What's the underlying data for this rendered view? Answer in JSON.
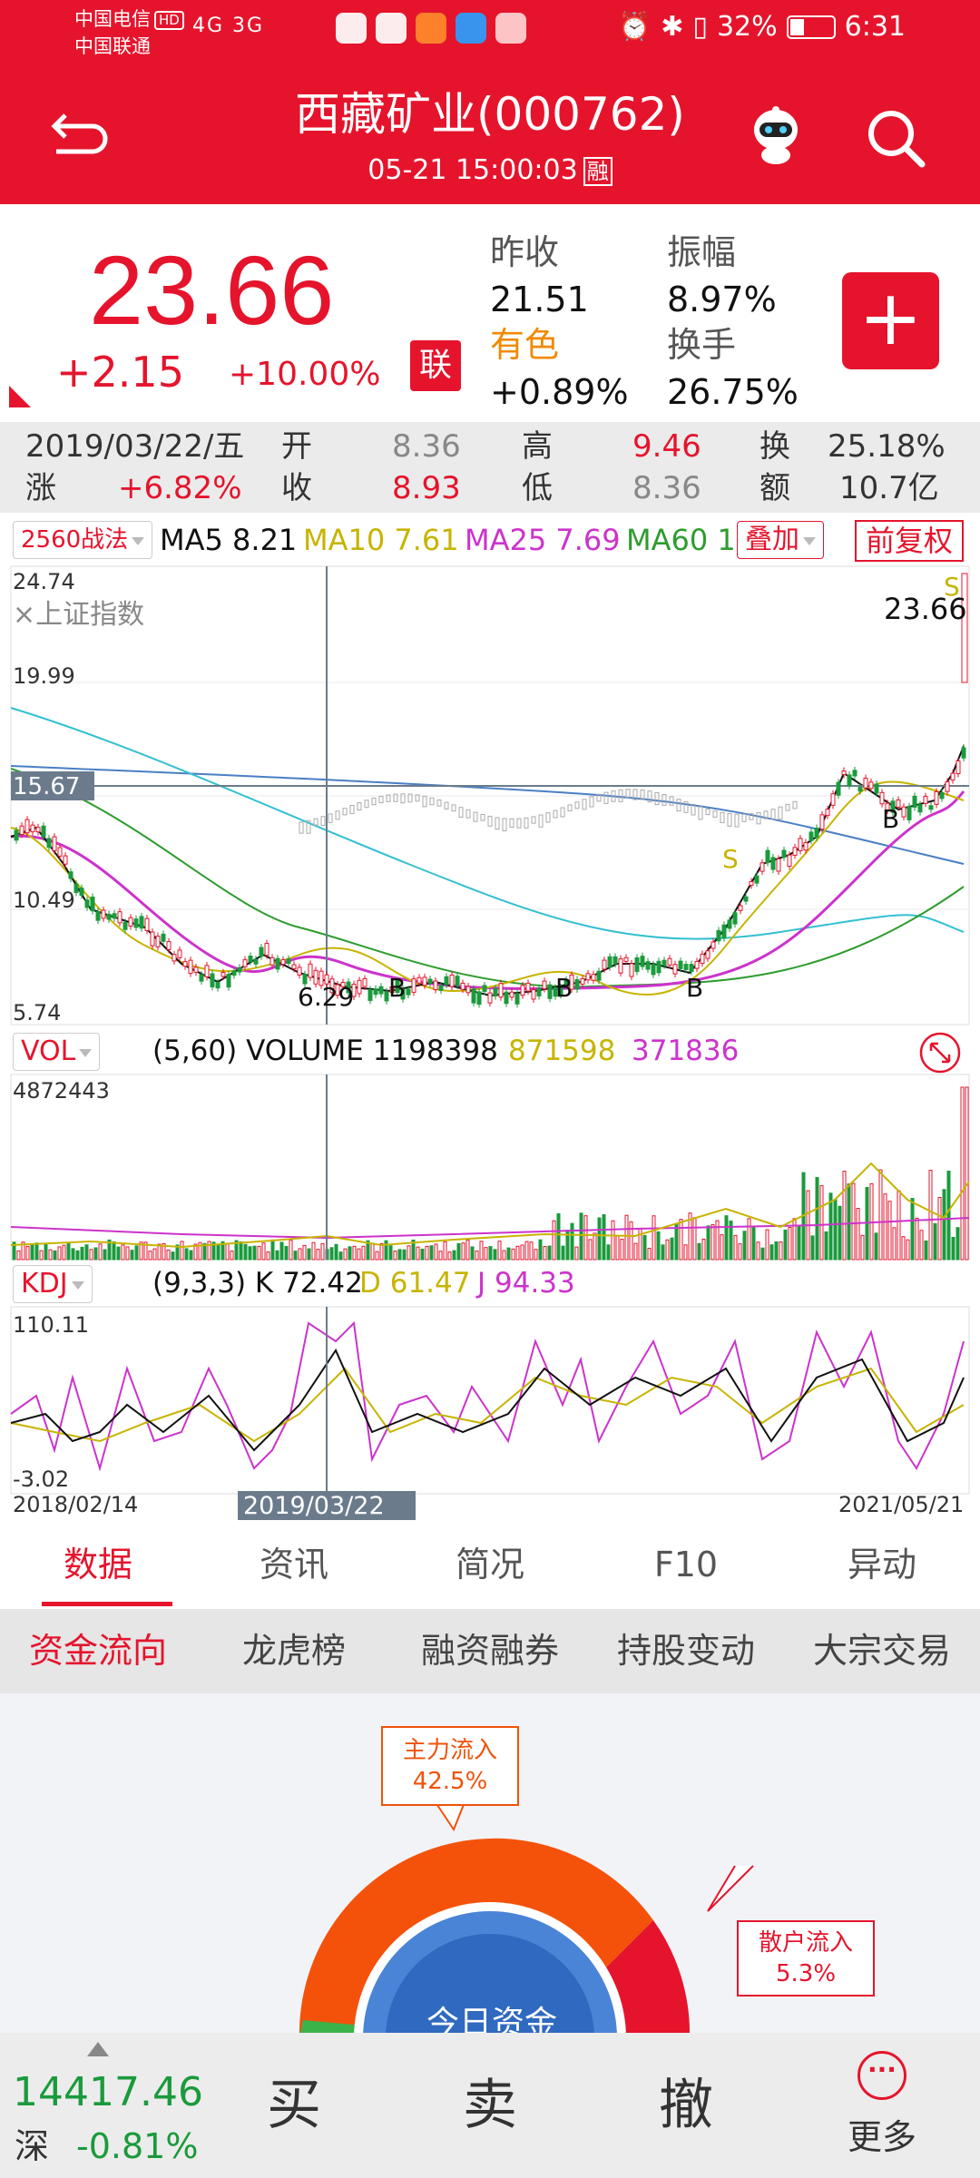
{
  "status_bar": {
    "carrier1": "中国电信",
    "hd": "HD",
    "carrier2": "中国联通",
    "signal": "4G 3G",
    "battery": "32%",
    "time": "6:31"
  },
  "header": {
    "title": "西藏矿业(000762)",
    "datetime": "05-21 15:00:03",
    "rong_badge": "融"
  },
  "quote": {
    "price": "23.66",
    "change": "+2.15",
    "change_pct": "+10.00%",
    "lian_badge": "联",
    "prev_close_label": "昨收",
    "prev_close": "21.51",
    "amplitude_label": "振幅",
    "amplitude": "8.97%",
    "sector_label": "有色",
    "sector_change": "+0.89%",
    "turnover_label": "换手",
    "turnover": "26.75%",
    "add_label": "+"
  },
  "history": {
    "date": "2019/03/22/五",
    "open_label": "开",
    "open": "8.36",
    "high_label": "高",
    "high": "9.46",
    "turn_label": "换",
    "turn": "25.18%",
    "rise_label": "涨",
    "rise": "+6.82%",
    "close_label": "收",
    "close": "8.93",
    "low_label": "低",
    "low": "8.36",
    "amount_label": "额",
    "amount": "10.7亿"
  },
  "chart_toolbar": {
    "strategy": "2560战法",
    "ma5": "MA5  8.21",
    "ma10": "MA10  7.61",
    "ma25": "MA25  7.69",
    "ma60": "MA60  1",
    "overlay": "叠加",
    "fq": "前复权"
  },
  "price_chart": {
    "y_labels": [
      "24.74",
      "19.99",
      "15.67",
      "10.49",
      "5.74"
    ],
    "overlay_label": "×上证指数",
    "last_label": "23.66",
    "low_label": "6.29"
  },
  "volume": {
    "dropdown": "VOL",
    "text": "(5,60) VOLUME 1198398",
    "ma1": "871598",
    "ma2": "371836",
    "max": "4872443"
  },
  "kdj": {
    "dropdown": "KDJ",
    "text": "(9,3,3) K 72.42",
    "d": "D  61.47",
    "j": "J  94.33",
    "max": "110.11",
    "min": "-3.02",
    "start_date": "2018/02/14",
    "cross_date": "2019/03/22",
    "end_date": "2021/05/21"
  },
  "tabs": [
    "数据",
    "资讯",
    "简况",
    "F10",
    "异动"
  ],
  "subtabs": [
    "资金流向",
    "龙虎榜",
    "融资融券",
    "持股变动",
    "大宗交易"
  ],
  "flow": {
    "main_label": "主力流入",
    "main_value": "42.5%",
    "retail_label": "散户流入",
    "retail_value": "5.3%",
    "center_text": "今日资金"
  },
  "bottom": {
    "index_value": "14417.46",
    "index_market": "深",
    "index_pct": "-0.81%",
    "buy": "买",
    "sell": "卖",
    "cancel": "撤",
    "more": "更多"
  },
  "colors": {
    "brand_red": "#e5142c",
    "down_green": "#1a9a3c",
    "ma10": "#c7b400",
    "ma25": "#cc33cc",
    "ma60": "#2e9c2e"
  }
}
